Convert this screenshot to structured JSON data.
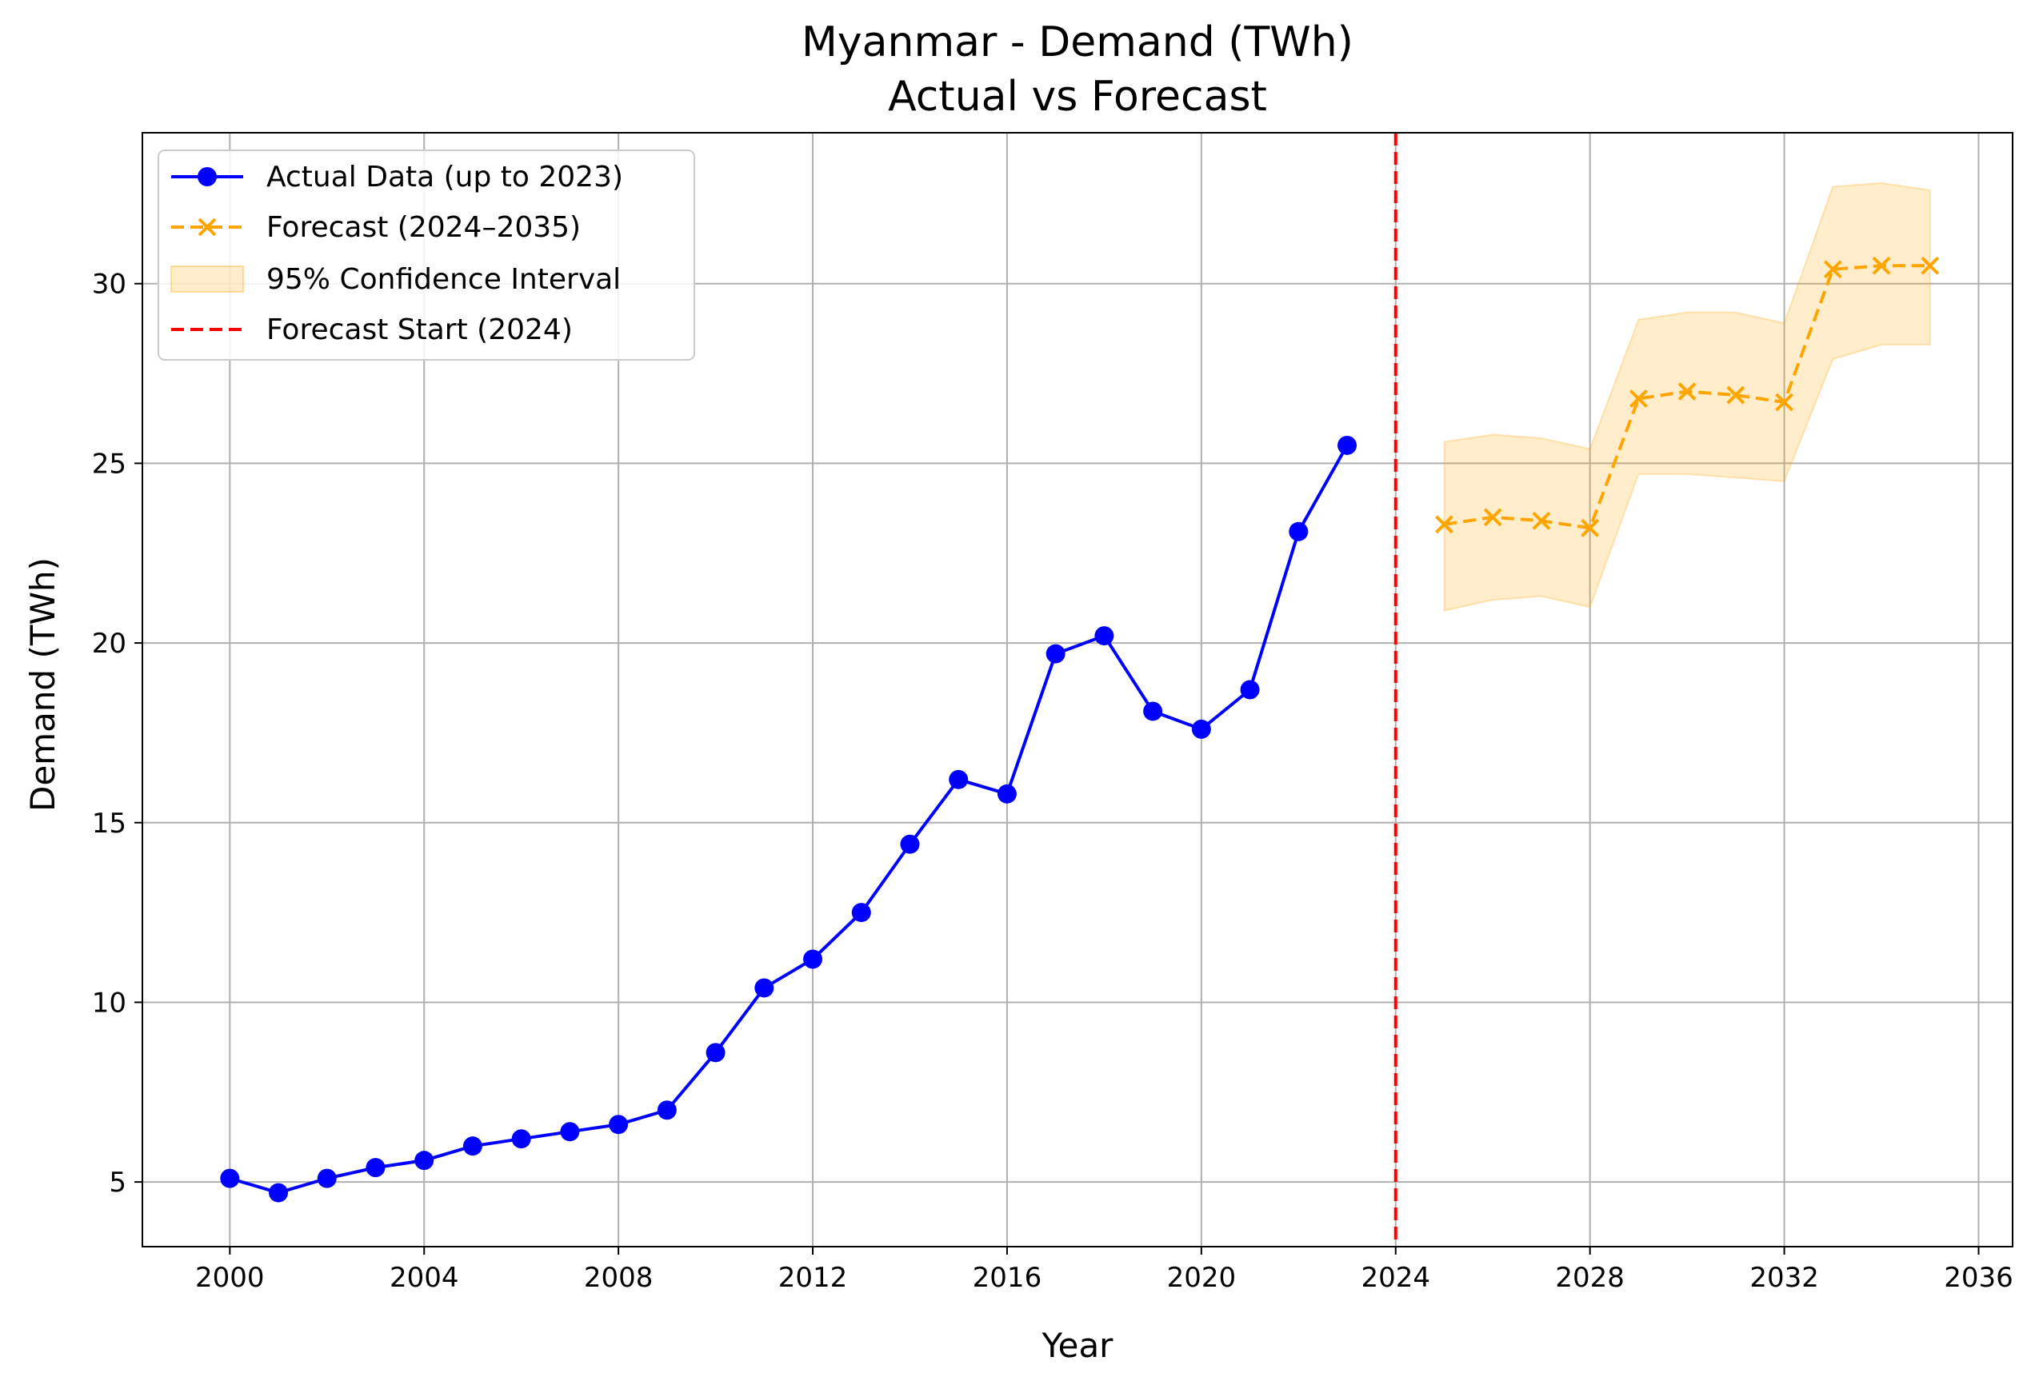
{
  "chart_data": {
    "type": "line",
    "title": "Myanmar - Demand (TWh)",
    "subtitle": "Actual vs Forecast",
    "xlabel": "Year",
    "ylabel": "Demand (TWh)",
    "xlim": [
      1998.2,
      2036.7
    ],
    "ylim": [
      3.2,
      34.2
    ],
    "x_ticks": [
      2000,
      2004,
      2008,
      2012,
      2016,
      2020,
      2024,
      2028,
      2032,
      2036
    ],
    "y_ticks": [
      5,
      10,
      15,
      20,
      25,
      30
    ],
    "grid": true,
    "legend_position": "upper-left",
    "colors": {
      "actual": "#0000ff",
      "forecast": "#ffa500",
      "interval": "#ffa500",
      "forecast_start": "#ff0000",
      "grid": "#b0b0b0"
    },
    "series": [
      {
        "name": "Actual Data (up to 2023)",
        "style": "solid-line-circle-markers",
        "x": [
          2000,
          2001,
          2002,
          2003,
          2004,
          2005,
          2006,
          2007,
          2008,
          2009,
          2010,
          2011,
          2012,
          2013,
          2014,
          2015,
          2016,
          2017,
          2018,
          2019,
          2020,
          2021,
          2022,
          2023
        ],
        "values": [
          5.1,
          4.7,
          5.1,
          5.4,
          5.6,
          6.0,
          6.2,
          6.4,
          6.6,
          7.0,
          8.6,
          10.4,
          11.2,
          12.5,
          14.4,
          16.2,
          15.8,
          19.7,
          20.2,
          18.1,
          17.6,
          18.7,
          23.1,
          25.5
        ]
      },
      {
        "name": "Forecast (2024–2035)",
        "style": "dashed-line-x-markers",
        "x": [
          2025,
          2026,
          2027,
          2028,
          2029,
          2030,
          2031,
          2032,
          2033,
          2034,
          2035
        ],
        "values": [
          23.3,
          23.5,
          23.4,
          23.2,
          26.8,
          27.0,
          26.9,
          26.7,
          30.4,
          30.5,
          30.5
        ]
      }
    ],
    "confidence_interval": {
      "name": "95% Confidence Interval",
      "x": [
        2025,
        2026,
        2027,
        2028,
        2029,
        2030,
        2031,
        2032,
        2033,
        2034,
        2035
      ],
      "lower": [
        20.9,
        21.2,
        21.3,
        21.0,
        24.7,
        24.7,
        24.6,
        24.5,
        27.9,
        28.3,
        28.3
      ],
      "upper": [
        25.6,
        25.8,
        25.7,
        25.4,
        29.0,
        29.2,
        29.2,
        28.9,
        32.7,
        32.8,
        32.6
      ]
    },
    "vertical_line": {
      "name": "Forecast Start (2024)",
      "x": 2024,
      "style": "dashed"
    }
  }
}
